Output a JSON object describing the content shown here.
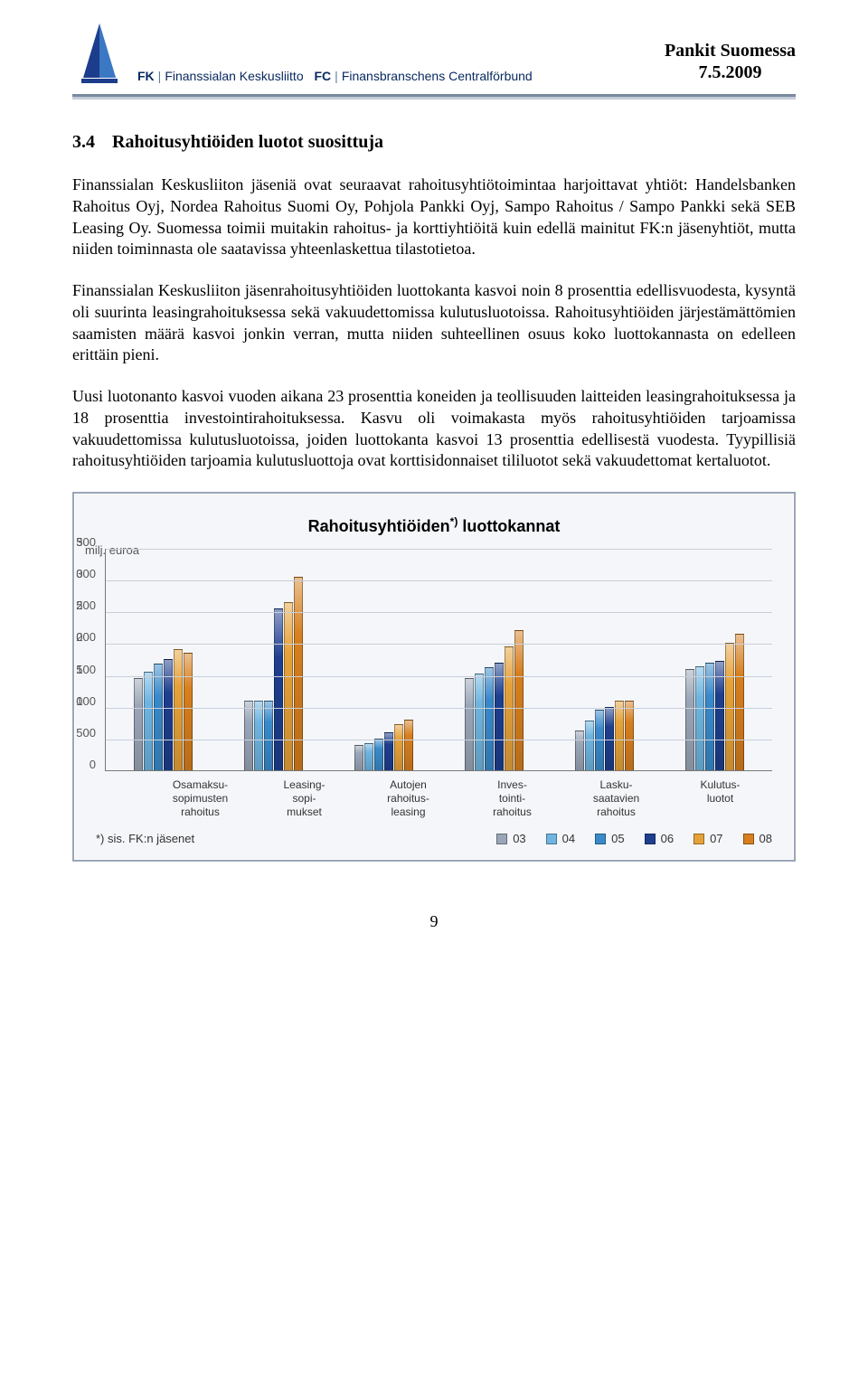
{
  "header": {
    "org_fk": "FK",
    "org_fi": "Finanssialan Keskusliitto",
    "org_fc": "FC",
    "org_sv": "Finansbranschens Centralförbund",
    "title_line1": "Pankit Suomessa",
    "title_line2": "7.5.2009"
  },
  "section": {
    "number": "3.4",
    "title": "Rahoitusyhtiöiden luotot suosittuja"
  },
  "paragraphs": {
    "p1": "Finanssialan Keskusliiton jäseniä ovat seuraavat rahoitusyhtiötoimintaa harjoittavat yhtiöt: Handelsbanken Rahoitus Oyj, Nordea Rahoitus Suomi Oy, Pohjola Pankki Oyj, Sampo Rahoitus / Sampo Pankki sekä SEB Leasing Oy. Suomessa toimii muitakin rahoitus- ja korttiyhtiöitä kuin edellä mainitut FK:n jäsenyhtiöt, mutta niiden toiminnasta ole saatavissa yhteenlaskettua tilastotietoa.",
    "p2": "Finanssialan Keskusliiton jäsenrahoitusyhtiöiden luottokanta kasvoi noin 8 prosenttia edellisvuodesta, kysyntä oli suurinta leasingrahoituksessa sekä vakuudettomissa kulutusluotoissa. Rahoitusyhtiöiden järjestämättömien saamisten määrä kasvoi jonkin verran, mutta niiden suhteellinen osuus koko luottokannasta on edelleen erittäin pieni.",
    "p3": "Uusi luotonanto kasvoi vuoden aikana 23 prosenttia koneiden ja teollisuuden laitteiden leasingrahoituksessa ja 18 prosenttia investointirahoituksessa. Kasvu oli voimakasta myös rahoitusyhtiöiden tarjoamissa vakuudettomissa kulutusluotoissa, joiden luottokanta kasvoi 13 prosenttia edellisestä vuodesta. Tyypillisiä rahoitusyhtiöiden tarjoamia kulutusluottoja ovat korttisidonnaiset tililuotot sekä vakuudettomat kertaluotot."
  },
  "chart": {
    "title_pre": "Rahoitusyhtiöiden",
    "title_sup": "*)",
    "title_post": " luottokannat",
    "unit": "milj. euroa",
    "ymax": 3500,
    "yticks": [
      3500,
      3000,
      2500,
      2000,
      1500,
      1000,
      500,
      0
    ],
    "ytick_labels": [
      "3 500",
      "3 000",
      "2 500",
      "2 000",
      "1 500",
      "1 000",
      "500",
      "0"
    ],
    "series_colors": {
      "03": "#9aa6b8",
      "04": "#6fb5e0",
      "05": "#3a8acb",
      "06": "#1e3f8f",
      "07": "#e6a23a",
      "08": "#d77f1e"
    },
    "legend_labels": [
      "03",
      "04",
      "05",
      "06",
      "07",
      "08"
    ],
    "categories": [
      {
        "label": "Osamaksu-\nsopimusten\nrahoitus",
        "values": [
          1450,
          1550,
          1680,
          1750,
          1900,
          1850
        ]
      },
      {
        "label": "Leasing-\nsopi-\nmukset",
        "values": [
          1100,
          1100,
          1100,
          2550,
          2650,
          3050
        ]
      },
      {
        "label": "Autojen\nrahoitus-\nleasing",
        "values": [
          400,
          430,
          500,
          600,
          730,
          800
        ]
      },
      {
        "label": "Inves-\ntointi-\nrahoitus",
        "values": [
          1450,
          1520,
          1620,
          1700,
          1950,
          2200
        ]
      },
      {
        "label": "Lasku-\nsaatavien\nrahoitus",
        "values": [
          620,
          780,
          950,
          1000,
          1100,
          1100
        ]
      },
      {
        "label": "Kulutus-\nluotot",
        "values": [
          1600,
          1630,
          1700,
          1720,
          2000,
          2150
        ]
      }
    ],
    "footnote": "*) sis. FK:n jäsenet"
  },
  "page_number": "9"
}
